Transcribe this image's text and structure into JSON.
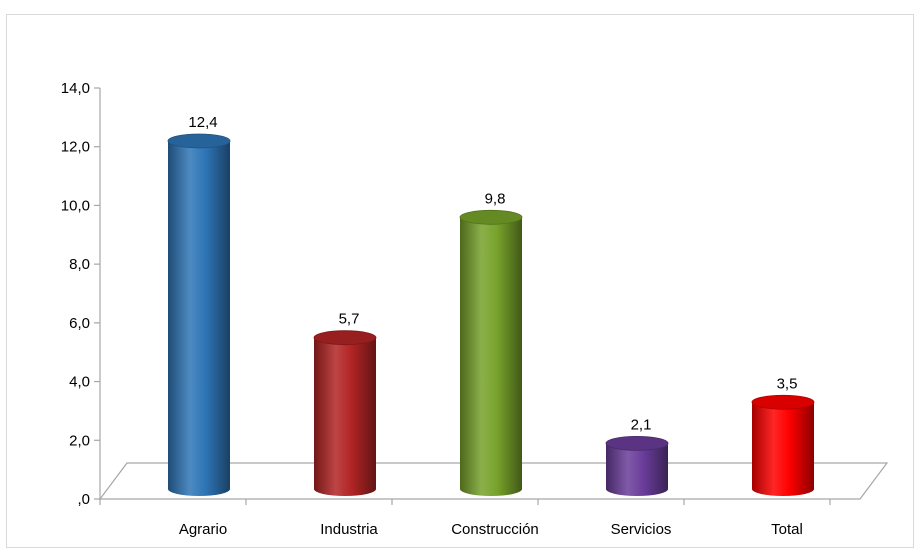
{
  "chart_data": {
    "type": "bar",
    "title": "",
    "xlabel": "",
    "ylabel": "",
    "categories": [
      "Agrario",
      "Industria",
      "Construcción",
      "Servicios",
      "Total"
    ],
    "values": [
      12.4,
      5.7,
      9.8,
      2.1,
      3.5
    ],
    "value_labels": [
      "12,4",
      "5,7",
      "9,8",
      "2,1",
      "3,5"
    ],
    "colors": [
      "#2e75b6",
      "#b22424",
      "#77a22a",
      "#6a3d9a",
      "#ff0000"
    ],
    "ylim": [
      0,
      14
    ],
    "yticks": [
      ",0",
      "2,0",
      "4,0",
      "6,0",
      "8,0",
      "10,0",
      "12,0",
      "14,0"
    ],
    "grid": false,
    "legend": "none",
    "style": "3d-cylinder"
  }
}
